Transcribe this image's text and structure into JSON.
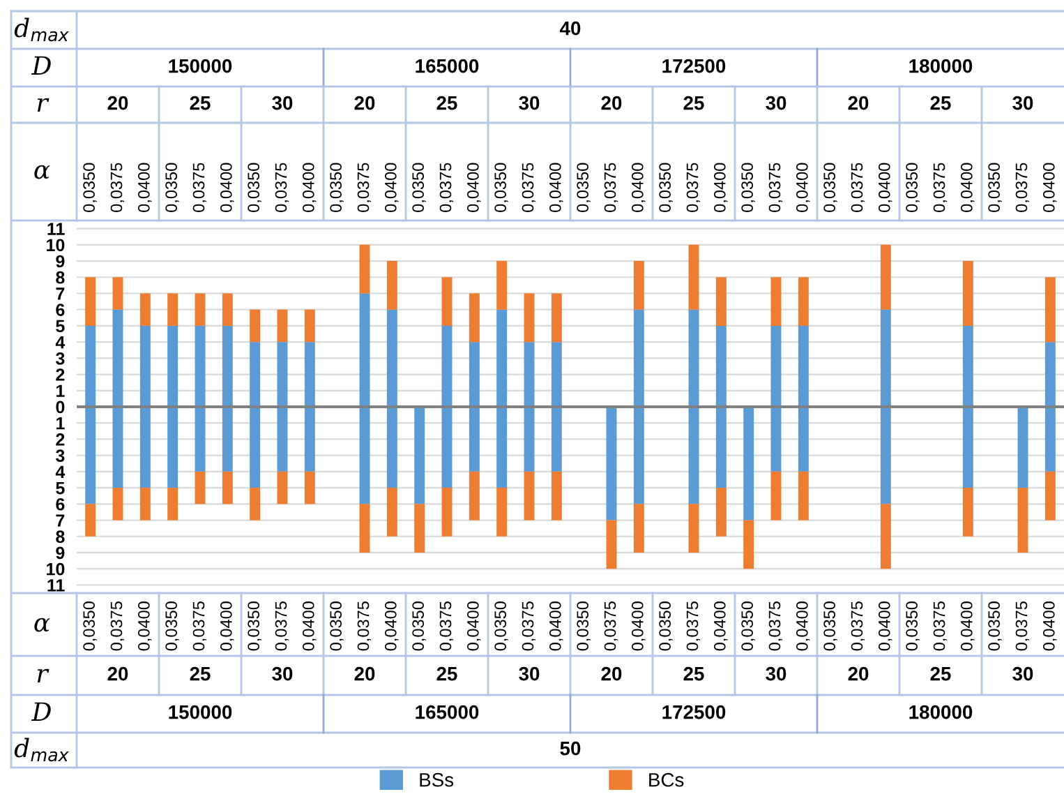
{
  "chart_data": {
    "type": "bar",
    "stacked": true,
    "categories": [
      "0,0350",
      "0,0375",
      "0,0400",
      "0,0350",
      "0,0375",
      "0,0400",
      "0,0350",
      "0,0375",
      "0,0400",
      "0,0350",
      "0,0375",
      "0,0400",
      "0,0350",
      "0,0375",
      "0,0400",
      "0,0350",
      "0,0375",
      "0,0400",
      "0,0350",
      "0,0375",
      "0,0400",
      "0,0350",
      "0,0375",
      "0,0400",
      "0,0350",
      "0,0375",
      "0,0400",
      "0,0350",
      "0,0375",
      "0,0400",
      "0,0350",
      "0,0375",
      "0,0400",
      "0,0350",
      "0,0375",
      "0,0400"
    ],
    "series": [
      {
        "name": "BSs",
        "color": "#5b9bd5",
        "values": [
          5,
          6,
          5,
          5,
          5,
          5,
          4,
          4,
          4,
          null,
          7,
          6,
          null,
          5,
          4,
          6,
          4,
          4,
          null,
          null,
          6,
          null,
          6,
          5,
          null,
          5,
          5,
          null,
          null,
          6,
          null,
          null,
          5,
          null,
          null,
          4
        ]
      },
      {
        "name": "BCs",
        "color": "#ed7d31",
        "values": [
          3,
          2,
          2,
          2,
          2,
          2,
          2,
          2,
          2,
          null,
          3,
          3,
          null,
          3,
          3,
          3,
          3,
          3,
          null,
          null,
          3,
          null,
          4,
          3,
          null,
          3,
          3,
          null,
          null,
          4,
          null,
          null,
          4,
          null,
          null,
          4
        ]
      },
      {
        "color": "#5b9bd5",
        "values": [
          -6,
          -5,
          -5,
          -5,
          -4,
          -4,
          -5,
          -4,
          -4,
          null,
          -6,
          -5,
          -6,
          -5,
          -4,
          -5,
          -4,
          -4,
          null,
          -7,
          -6,
          null,
          -6,
          -5,
          -7,
          -4,
          -4,
          null,
          null,
          -6,
          null,
          null,
          -5,
          null,
          -5,
          -4
        ]
      },
      {
        "color": "#ed7d31",
        "values": [
          -2,
          -2,
          -2,
          -2,
          -2,
          -2,
          -2,
          -2,
          -2,
          null,
          -3,
          -3,
          -3,
          -3,
          -3,
          -3,
          -3,
          -3,
          null,
          -3,
          -3,
          null,
          -3,
          -3,
          -3,
          -3,
          -3,
          null,
          null,
          -4,
          null,
          null,
          -3,
          null,
          -4,
          -3
        ]
      }
    ],
    "ylim": [
      -11.5,
      11.5
    ],
    "yticks": [
      {
        "value": -11,
        "label": "11"
      },
      {
        "value": -10,
        "label": "10"
      },
      {
        "value": -9,
        "label": "9"
      },
      {
        "value": -8,
        "label": "8"
      },
      {
        "value": -7,
        "label": "7"
      },
      {
        "value": -6,
        "label": "6"
      },
      {
        "value": -5,
        "label": "5"
      },
      {
        "value": -4,
        "label": "4"
      },
      {
        "value": -3,
        "label": "3"
      },
      {
        "value": -2,
        "label": "2"
      },
      {
        "value": -1,
        "label": "1"
      },
      0,
      1,
      2,
      3,
      4,
      5,
      6,
      7,
      8,
      9,
      10,
      11
    ],
    "grid": "y",
    "ref_lines": [
      {
        "axis": "y",
        "value": 0,
        "color": "#808080"
      }
    ],
    "legend": "bottom",
    "annotations": [
      "d$_{max}$",
      "40",
      "D",
      "150000",
      "165000",
      "172500",
      "180000",
      "r",
      "20",
      "25",
      "30",
      "20",
      "25",
      "30",
      "20",
      "25",
      "30",
      "20",
      "25",
      "30",
      "α",
      "α",
      "r",
      "20",
      "25",
      "30",
      "20",
      "25",
      "30",
      "20",
      "25",
      "30",
      "20",
      "25",
      "30",
      "D",
      "150000",
      "165000",
      "172500",
      "180000",
      "d$_{max}$",
      "50"
    ]
  }
}
